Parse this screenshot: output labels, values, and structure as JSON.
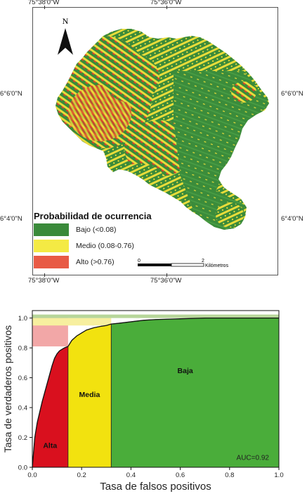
{
  "map": {
    "north_label": "N",
    "coords": {
      "top_left": "75°38'0\"W",
      "top_right": "75°36'0\"W",
      "bottom_left": "75°38'0\"W",
      "bottom_right": "75°36'0\"W",
      "left_upper": "6°6'0\"N",
      "left_lower": "6°4'0\"N",
      "right_upper": "6°6'0\"N",
      "right_lower": "6°4'0\"N"
    },
    "legend": {
      "title": "Probabilidad de ocurrencia",
      "items": [
        {
          "label": "Bajo (<0.08)",
          "color": "#3a8a3a"
        },
        {
          "label": "Medio (0.08-0.76)",
          "color": "#f4ea44"
        },
        {
          "label": "Alto (>0.76)",
          "color": "#e85a45"
        }
      ]
    },
    "scale": {
      "start": "0",
      "end": "2",
      "unit": "Kilómetros"
    },
    "colors": {
      "bajo": "#3a8a3a",
      "medio": "#e8dc3a",
      "alto": "#d9442e"
    }
  },
  "chart_data": {
    "type": "line",
    "xlabel": "Tasa de falsos positivos",
    "ylabel": "Tasa de verdaderos positivos",
    "xlim": [
      0.0,
      1.0
    ],
    "ylim": [
      0.0,
      1.05
    ],
    "xticks": [
      "0.0",
      "0.2",
      "0.4",
      "0.6",
      "0.8",
      "1.0"
    ],
    "yticks": [
      "0.0",
      "0.2",
      "0.4",
      "0.6",
      "0.8",
      "1.0"
    ],
    "annotation": "AUC=0.92",
    "zones": [
      {
        "label": "Alta",
        "x_from": 0.0,
        "x_to": 0.145,
        "y_band": [
          0.81,
          1.0
        ],
        "color": "#d9101e",
        "band_color": "#f2a7a7"
      },
      {
        "label": "Media",
        "x_from": 0.145,
        "x_to": 0.32,
        "y_band": [
          0.95,
          1.0
        ],
        "color": "#f2e20f",
        "band_color": "#f7ef9f"
      },
      {
        "label": "Baja",
        "x_from": 0.32,
        "x_to": 1.0,
        "y_band": [
          1.0,
          1.0
        ],
        "color": "#4aad3a",
        "band_color": "#b7d69a"
      }
    ],
    "roc_curve": {
      "x": [
        0.0,
        0.005,
        0.01,
        0.02,
        0.03,
        0.04,
        0.05,
        0.06,
        0.07,
        0.08,
        0.09,
        0.1,
        0.11,
        0.12,
        0.13,
        0.145,
        0.16,
        0.18,
        0.2,
        0.22,
        0.25,
        0.28,
        0.3,
        0.32,
        0.35,
        0.4,
        0.45,
        0.5,
        0.6,
        0.7,
        0.8,
        0.9,
        1.0
      ],
      "y": [
        0.0,
        0.1,
        0.2,
        0.3,
        0.37,
        0.44,
        0.5,
        0.56,
        0.62,
        0.68,
        0.73,
        0.76,
        0.78,
        0.79,
        0.8,
        0.81,
        0.85,
        0.88,
        0.9,
        0.92,
        0.935,
        0.945,
        0.95,
        0.96,
        0.965,
        0.975,
        0.985,
        0.99,
        0.995,
        1.0,
        1.0,
        1.0,
        1.0
      ]
    }
  }
}
